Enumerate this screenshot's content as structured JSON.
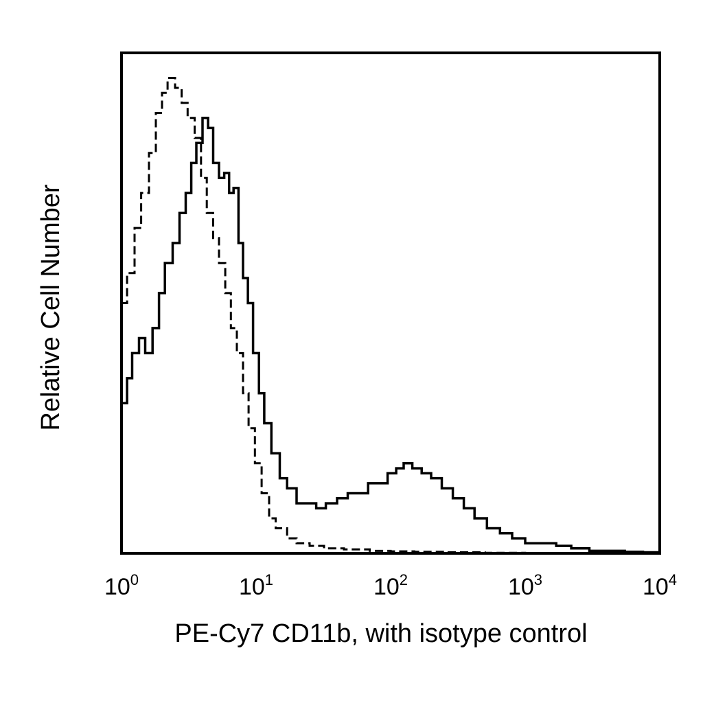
{
  "chart_data": {
    "type": "histogram",
    "xlabel": "PE-Cy7 CD11b, with isotype control",
    "ylabel": "Relative Cell Number",
    "x_scale": "log",
    "xlim": [
      1,
      10000
    ],
    "ylim": [
      0,
      100
    ],
    "y_ticks_shown": false,
    "grid": false,
    "legend": "none",
    "x_ticks": [
      {
        "base": "10",
        "exp": "0",
        "value": 1
      },
      {
        "base": "10",
        "exp": "1",
        "value": 10
      },
      {
        "base": "10",
        "exp": "2",
        "value": 100
      },
      {
        "base": "10",
        "exp": "3",
        "value": 1000
      },
      {
        "base": "10",
        "exp": "4",
        "value": 10000
      }
    ],
    "series": [
      {
        "style": "solid",
        "color": "#000000",
        "x": [
          1.0,
          1.1,
          1.2,
          1.35,
          1.5,
          1.7,
          1.9,
          2.1,
          2.4,
          2.7,
          3.0,
          3.3,
          3.6,
          4.0,
          4.4,
          4.8,
          5.3,
          5.8,
          6.3,
          6.8,
          7.4,
          8.0,
          8.7,
          9.5,
          10.5,
          11.5,
          13,
          15,
          17,
          20,
          24,
          28,
          33,
          40,
          48,
          57,
          68,
          80,
          95,
          110,
          125,
          145,
          170,
          200,
          240,
          290,
          350,
          420,
          520,
          650,
          800,
          1000,
          1300,
          1700,
          2200,
          3000,
          4000,
          5500,
          7500,
          10000
        ],
        "y": [
          30,
          35,
          40,
          43,
          40,
          45,
          52,
          58,
          62,
          68,
          72,
          78,
          82,
          87,
          85,
          78,
          75,
          76,
          72,
          73,
          62,
          55,
          50,
          40,
          32,
          26,
          20,
          15,
          13,
          10,
          10,
          9,
          10,
          11,
          12,
          12,
          14,
          14,
          16,
          17,
          18,
          17,
          16,
          15,
          13,
          11,
          9,
          7,
          5,
          4,
          3,
          2,
          2,
          1.5,
          1,
          0.5,
          0.5,
          0.3,
          0.2,
          0
        ]
      },
      {
        "style": "dashed",
        "color": "#000000",
        "x": [
          1.0,
          1.1,
          1.25,
          1.4,
          1.6,
          1.8,
          2.0,
          2.2,
          2.5,
          2.8,
          3.1,
          3.5,
          3.9,
          4.3,
          4.8,
          5.3,
          5.9,
          6.5,
          7.2,
          8.0,
          8.8,
          9.8,
          11,
          12.5,
          14,
          17,
          20,
          25,
          32,
          45,
          70,
          100,
          150,
          250,
          500,
          1000,
          2000,
          5000,
          10000
        ],
        "y": [
          50,
          56,
          65,
          72,
          80,
          88,
          92,
          95,
          93,
          90,
          87,
          83,
          75,
          68,
          63,
          58,
          52,
          45,
          40,
          32,
          25,
          18,
          12,
          7,
          5,
          3,
          2,
          1.5,
          1,
          0.8,
          0.5,
          0.4,
          0.3,
          0.2,
          0.1,
          0,
          0,
          0,
          0
        ]
      }
    ]
  }
}
